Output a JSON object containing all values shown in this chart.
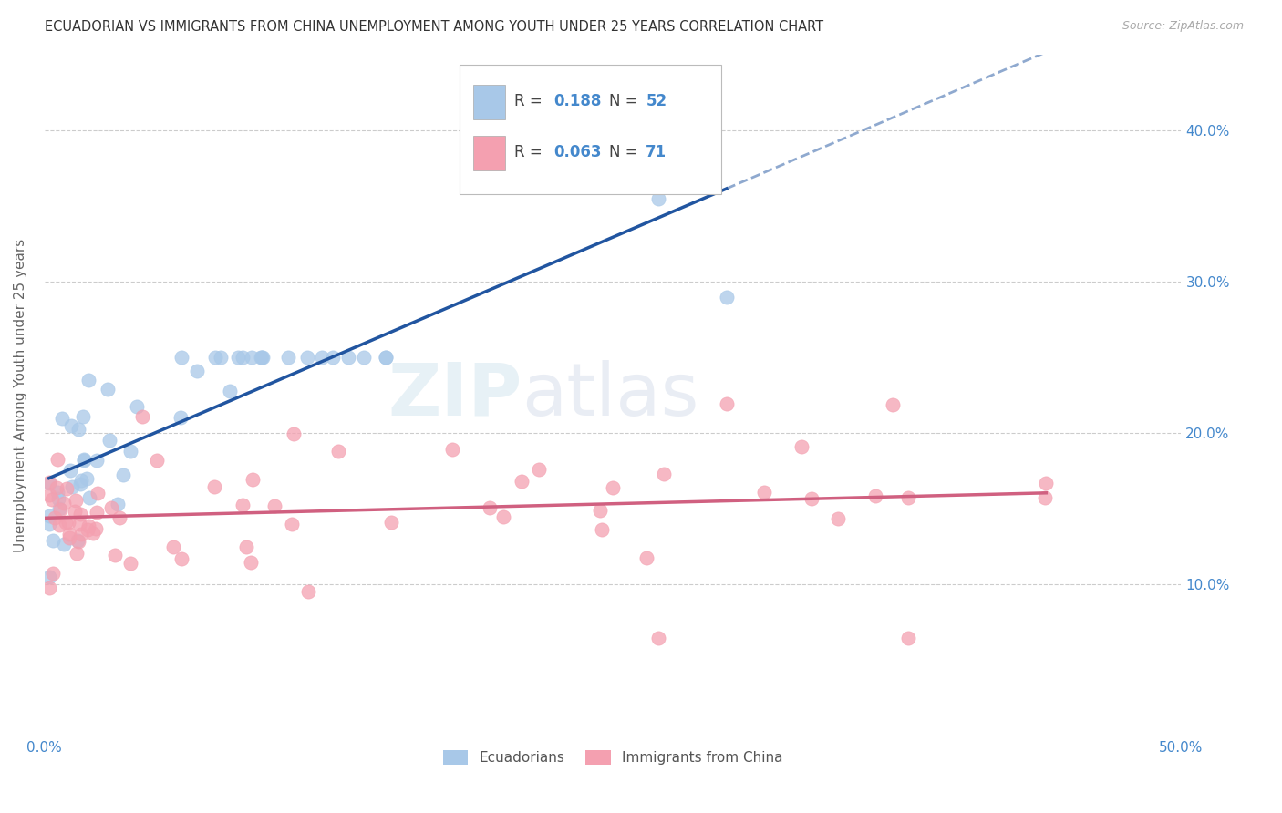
{
  "title": "ECUADORIAN VS IMMIGRANTS FROM CHINA UNEMPLOYMENT AMONG YOUTH UNDER 25 YEARS CORRELATION CHART",
  "source": "Source: ZipAtlas.com",
  "ylabel": "Unemployment Among Youth under 25 years",
  "xlim": [
    0.0,
    0.5
  ],
  "ylim": [
    0.0,
    0.45
  ],
  "x_ticks": [
    0.0,
    0.1,
    0.2,
    0.3,
    0.4,
    0.5
  ],
  "x_tick_labels": [
    "0.0%",
    "",
    "",
    "",
    "",
    "50.0%"
  ],
  "y_ticks": [
    0.0,
    0.1,
    0.2,
    0.3,
    0.4
  ],
  "y_right_labels": [
    "",
    "10.0%",
    "20.0%",
    "30.0%",
    "40.0%"
  ],
  "background_color": "#ffffff",
  "grid_color": "#cccccc",
  "blue_color": "#a8c8e8",
  "pink_color": "#f4a0b0",
  "blue_line_color": "#2155a0",
  "pink_line_color": "#d06080",
  "label_color": "#4488cc",
  "R_blue": 0.188,
  "N_blue": 52,
  "R_pink": 0.063,
  "N_pink": 71
}
